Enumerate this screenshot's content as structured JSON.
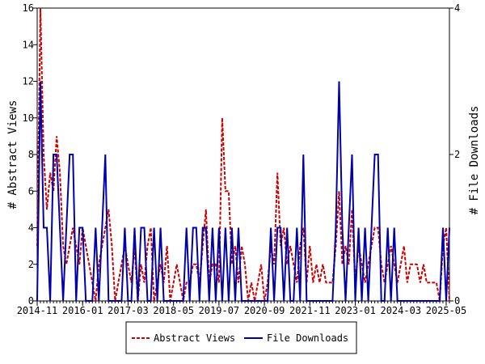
{
  "chart_data": {
    "type": "line",
    "ylabel_left": "# Abstract Views",
    "ylabel_right": "# File Downloads",
    "ylim_left": [
      0,
      16
    ],
    "ylim_right": [
      0,
      4
    ],
    "yticks_left": [
      "0",
      "2",
      "4",
      "6",
      "8",
      "10",
      "12",
      "14",
      "16"
    ],
    "yticks_right": [
      "0",
      "2",
      "4"
    ],
    "x_range": [
      "2014-11",
      "2025-06"
    ],
    "xticks": [
      "2014-11",
      "2016-01",
      "2017-03",
      "2018-05",
      "2019-07",
      "2020-09",
      "2021-11",
      "2023-01",
      "2024-03",
      "2025-05"
    ],
    "legend_position": "bottom",
    "series": [
      {
        "name": "Abstract Views",
        "axis": "left",
        "color": "#cc0000",
        "style": "dashed",
        "points": [
          [
            "2014-11",
            3
          ],
          [
            "2014-12",
            16
          ],
          [
            "2015-01",
            8
          ],
          [
            "2015-02",
            5
          ],
          [
            "2015-03",
            7
          ],
          [
            "2015-04",
            6
          ],
          [
            "2015-05",
            9
          ],
          [
            "2015-06",
            7
          ],
          [
            "2015-07",
            3
          ],
          [
            "2015-08",
            2
          ],
          [
            "2015-09",
            3
          ],
          [
            "2015-10",
            4
          ],
          [
            "2015-11",
            3
          ],
          [
            "2015-12",
            2
          ],
          [
            "2016-01",
            4
          ],
          [
            "2016-02",
            3
          ],
          [
            "2016-03",
            2
          ],
          [
            "2016-04",
            1
          ],
          [
            "2016-05",
            0
          ],
          [
            "2016-06",
            2
          ],
          [
            "2016-07",
            3
          ],
          [
            "2016-08",
            4
          ],
          [
            "2016-09",
            5
          ],
          [
            "2016-10",
            3
          ],
          [
            "2016-11",
            0
          ],
          [
            "2016-12",
            1
          ],
          [
            "2017-01",
            2
          ],
          [
            "2017-02",
            3
          ],
          [
            "2017-03",
            2
          ],
          [
            "2017-04",
            1
          ],
          [
            "2017-05",
            3
          ],
          [
            "2017-06",
            0
          ],
          [
            "2017-07",
            2
          ],
          [
            "2017-08",
            1
          ],
          [
            "2017-09",
            3
          ],
          [
            "2017-10",
            4
          ],
          [
            "2017-11",
            0
          ],
          [
            "2017-12",
            1
          ],
          [
            "2018-01",
            2
          ],
          [
            "2018-02",
            1
          ],
          [
            "2018-03",
            3
          ],
          [
            "2018-04",
            0
          ],
          [
            "2018-05",
            1
          ],
          [
            "2018-06",
            2
          ],
          [
            "2018-07",
            1
          ],
          [
            "2018-08",
            0
          ],
          [
            "2018-09",
            1
          ],
          [
            "2018-10",
            1
          ],
          [
            "2018-11",
            2
          ],
          [
            "2018-12",
            2
          ],
          [
            "2019-01",
            1
          ],
          [
            "2019-02",
            3
          ],
          [
            "2019-03",
            5
          ],
          [
            "2019-04",
            1
          ],
          [
            "2019-05",
            2
          ],
          [
            "2019-06",
            2
          ],
          [
            "2019-07",
            1
          ],
          [
            "2019-08",
            10
          ],
          [
            "2019-09",
            6
          ],
          [
            "2019-10",
            6
          ],
          [
            "2019-11",
            2
          ],
          [
            "2019-12",
            3
          ],
          [
            "2020-01",
            1
          ],
          [
            "2020-02",
            3
          ],
          [
            "2020-03",
            2
          ],
          [
            "2020-04",
            0
          ],
          [
            "2020-05",
            1
          ],
          [
            "2020-06",
            0
          ],
          [
            "2020-07",
            1
          ],
          [
            "2020-08",
            2
          ],
          [
            "2020-09",
            0
          ],
          [
            "2020-10",
            1
          ],
          [
            "2020-11",
            3
          ],
          [
            "2020-12",
            2
          ],
          [
            "2021-01",
            7
          ],
          [
            "2021-02",
            3
          ],
          [
            "2021-03",
            4
          ],
          [
            "2021-04",
            2
          ],
          [
            "2021-05",
            3
          ],
          [
            "2021-06",
            2
          ],
          [
            "2021-07",
            1
          ],
          [
            "2021-08",
            3
          ],
          [
            "2021-09",
            4
          ],
          [
            "2021-10",
            1
          ],
          [
            "2021-11",
            3
          ],
          [
            "2021-12",
            1
          ],
          [
            "2022-01",
            2
          ],
          [
            "2022-02",
            1
          ],
          [
            "2022-03",
            2
          ],
          [
            "2022-04",
            1
          ],
          [
            "2022-05",
            1
          ],
          [
            "2022-06",
            1
          ],
          [
            "2022-07",
            3
          ],
          [
            "2022-08",
            6
          ],
          [
            "2022-09",
            2
          ],
          [
            "2022-10",
            3
          ],
          [
            "2022-11",
            2
          ],
          [
            "2022-12",
            5
          ],
          [
            "2023-01",
            1
          ],
          [
            "2023-02",
            3
          ],
          [
            "2023-03",
            2
          ],
          [
            "2023-04",
            1
          ],
          [
            "2023-05",
            2
          ],
          [
            "2023-06",
            3
          ],
          [
            "2023-07",
            4
          ],
          [
            "2023-08",
            4
          ],
          [
            "2023-09",
            2
          ],
          [
            "2023-10",
            1
          ],
          [
            "2023-11",
            2
          ],
          [
            "2023-12",
            3
          ],
          [
            "2024-01",
            2
          ],
          [
            "2024-02",
            1
          ],
          [
            "2024-03",
            2
          ],
          [
            "2024-04",
            3
          ],
          [
            "2024-05",
            1
          ],
          [
            "2024-06",
            2
          ],
          [
            "2024-07",
            2
          ],
          [
            "2024-08",
            2
          ],
          [
            "2024-09",
            1
          ],
          [
            "2024-10",
            2
          ],
          [
            "2024-11",
            1
          ],
          [
            "2024-12",
            1
          ],
          [
            "2025-01",
            1
          ],
          [
            "2025-02",
            1
          ],
          [
            "2025-03",
            0
          ],
          [
            "2025-04",
            3
          ],
          [
            "2025-05",
            4
          ],
          [
            "2025-06",
            0
          ]
        ]
      },
      {
        "name": "File Downloads",
        "axis": "right",
        "color": "#0000aa",
        "style": "solid",
        "points": [
          [
            "2014-11",
            0
          ],
          [
            "2014-12",
            3
          ],
          [
            "2015-01",
            1
          ],
          [
            "2015-02",
            1
          ],
          [
            "2015-03",
            0
          ],
          [
            "2015-04",
            2
          ],
          [
            "2015-05",
            2
          ],
          [
            "2015-06",
            1
          ],
          [
            "2015-07",
            0
          ],
          [
            "2015-08",
            1
          ],
          [
            "2015-09",
            2
          ],
          [
            "2015-10",
            2
          ],
          [
            "2015-11",
            0
          ],
          [
            "2015-12",
            1
          ],
          [
            "2016-01",
            1
          ],
          [
            "2016-02",
            0
          ],
          [
            "2016-03",
            0
          ],
          [
            "2016-04",
            0
          ],
          [
            "2016-05",
            1
          ],
          [
            "2016-06",
            0
          ],
          [
            "2016-07",
            1
          ],
          [
            "2016-08",
            2
          ],
          [
            "2016-09",
            0
          ],
          [
            "2016-10",
            0
          ],
          [
            "2016-11",
            0
          ],
          [
            "2016-12",
            0
          ],
          [
            "2017-01",
            0
          ],
          [
            "2017-02",
            1
          ],
          [
            "2017-03",
            0
          ],
          [
            "2017-04",
            0
          ],
          [
            "2017-05",
            1
          ],
          [
            "2017-06",
            0
          ],
          [
            "2017-07",
            1
          ],
          [
            "2017-08",
            1
          ],
          [
            "2017-09",
            0
          ],
          [
            "2017-10",
            0
          ],
          [
            "2017-11",
            1
          ],
          [
            "2017-12",
            0
          ],
          [
            "2018-01",
            1
          ],
          [
            "2018-02",
            0
          ],
          [
            "2018-03",
            0
          ],
          [
            "2018-04",
            0
          ],
          [
            "2018-05",
            0
          ],
          [
            "2018-06",
            0
          ],
          [
            "2018-07",
            0
          ],
          [
            "2018-08",
            0
          ],
          [
            "2018-09",
            1
          ],
          [
            "2018-10",
            0
          ],
          [
            "2018-11",
            1
          ],
          [
            "2018-12",
            1
          ],
          [
            "2019-01",
            0
          ],
          [
            "2019-02",
            1
          ],
          [
            "2019-03",
            1
          ],
          [
            "2019-04",
            0
          ],
          [
            "2019-05",
            1
          ],
          [
            "2019-06",
            0
          ],
          [
            "2019-07",
            1
          ],
          [
            "2019-08",
            0
          ],
          [
            "2019-09",
            1
          ],
          [
            "2019-10",
            0
          ],
          [
            "2019-11",
            1
          ],
          [
            "2019-12",
            0
          ],
          [
            "2020-01",
            1
          ],
          [
            "2020-02",
            0
          ],
          [
            "2020-03",
            0
          ],
          [
            "2020-04",
            0
          ],
          [
            "2020-05",
            0
          ],
          [
            "2020-06",
            0
          ],
          [
            "2020-07",
            0
          ],
          [
            "2020-08",
            0
          ],
          [
            "2020-09",
            0
          ],
          [
            "2020-10",
            0
          ],
          [
            "2020-11",
            1
          ],
          [
            "2020-12",
            0
          ],
          [
            "2021-01",
            1
          ],
          [
            "2021-02",
            1
          ],
          [
            "2021-03",
            0
          ],
          [
            "2021-04",
            1
          ],
          [
            "2021-05",
            0
          ],
          [
            "2021-06",
            0
          ],
          [
            "2021-07",
            1
          ],
          [
            "2021-08",
            0
          ],
          [
            "2021-09",
            2
          ],
          [
            "2021-10",
            0
          ],
          [
            "2021-11",
            0
          ],
          [
            "2021-12",
            0
          ],
          [
            "2022-01",
            0
          ],
          [
            "2022-02",
            0
          ],
          [
            "2022-03",
            0
          ],
          [
            "2022-04",
            0
          ],
          [
            "2022-05",
            0
          ],
          [
            "2022-06",
            0
          ],
          [
            "2022-07",
            1
          ],
          [
            "2022-08",
            3
          ],
          [
            "2022-09",
            1
          ],
          [
            "2022-10",
            0
          ],
          [
            "2022-11",
            1
          ],
          [
            "2022-12",
            2
          ],
          [
            "2023-01",
            0
          ],
          [
            "2023-02",
            1
          ],
          [
            "2023-03",
            0
          ],
          [
            "2023-04",
            1
          ],
          [
            "2023-05",
            0
          ],
          [
            "2023-06",
            1
          ],
          [
            "2023-07",
            2
          ],
          [
            "2023-08",
            2
          ],
          [
            "2023-09",
            0
          ],
          [
            "2023-10",
            0
          ],
          [
            "2023-11",
            1
          ],
          [
            "2023-12",
            0
          ],
          [
            "2024-01",
            1
          ],
          [
            "2024-02",
            0
          ],
          [
            "2024-03",
            0
          ],
          [
            "2024-04",
            0
          ],
          [
            "2024-05",
            0
          ],
          [
            "2024-06",
            0
          ],
          [
            "2024-07",
            0
          ],
          [
            "2024-08",
            0
          ],
          [
            "2024-09",
            0
          ],
          [
            "2024-10",
            0
          ],
          [
            "2024-11",
            0
          ],
          [
            "2024-12",
            0
          ],
          [
            "2025-01",
            0
          ],
          [
            "2025-02",
            0
          ],
          [
            "2025-03",
            0
          ],
          [
            "2025-04",
            1
          ],
          [
            "2025-05",
            0
          ],
          [
            "2025-06",
            1
          ]
        ]
      }
    ]
  }
}
